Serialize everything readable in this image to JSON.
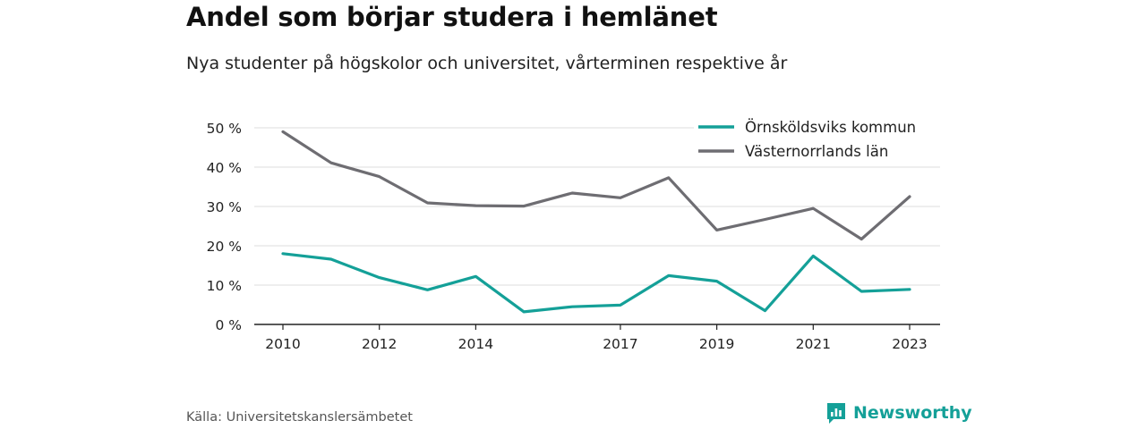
{
  "header": {
    "title": "Andel som börjar studera i hemlänet",
    "subtitle": "Nya studenter på högskolor och universitet, vårterminen respektive år"
  },
  "footer": {
    "source": "Källa: Universitetskanslersämbetet",
    "brand": "Newsworthy",
    "brand_icon": "chart-logo-icon",
    "brand_color": "#14a098"
  },
  "chart_data": {
    "type": "line",
    "x": [
      2010,
      2011,
      2012,
      2013,
      2014,
      2015,
      2016,
      2017,
      2018,
      2019,
      2020,
      2021,
      2022,
      2023
    ],
    "x_tick_labels": [
      "2010",
      "2012",
      "2014",
      "2017",
      "2019",
      "2021",
      "2023"
    ],
    "x_ticks": [
      2010,
      2012,
      2014,
      2017,
      2019,
      2021,
      2023
    ],
    "y_tick_labels": [
      "0 %",
      "10 %",
      "20 %",
      "30 %",
      "40 %",
      "50 %"
    ],
    "y_ticks": [
      0,
      10,
      20,
      30,
      40,
      50
    ],
    "ylim": [
      0,
      50
    ],
    "grid": true,
    "legend_position": "top-right",
    "series": [
      {
        "name": "Örnsköldsviks kommun",
        "color": "#14a098",
        "values": [
          18.0,
          16.6,
          11.9,
          8.8,
          12.2,
          3.2,
          4.5,
          4.9,
          12.4,
          11.0,
          3.5,
          17.4,
          8.4,
          8.9
        ]
      },
      {
        "name": "Västernorrlands län",
        "color": "#6e6d72",
        "values": [
          49.0,
          41.1,
          37.6,
          30.9,
          30.2,
          30.1,
          33.4,
          32.2,
          37.3,
          24.0,
          26.7,
          29.5,
          21.7,
          32.5
        ]
      }
    ]
  }
}
